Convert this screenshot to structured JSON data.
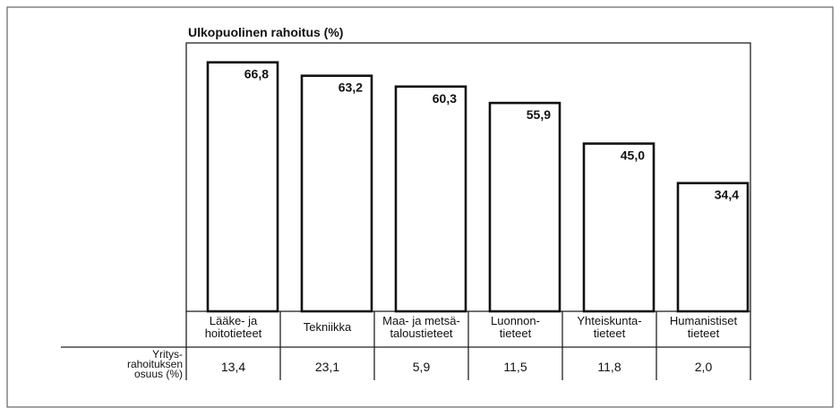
{
  "chart_data": {
    "type": "bar",
    "title": "Ulkopuolinen rahoitus (%)",
    "categories": [
      "Lääke- ja\nhoitotieteet",
      "Tekniikka",
      "Maa- ja metsä-\ntaloustieteet",
      "Luonnon-\ntieteet",
      "Yhteiskunta-\ntieteet",
      "Humanistiset\ntieteet"
    ],
    "values": [
      66.8,
      63.2,
      60.3,
      55.9,
      45.0,
      34.4
    ],
    "value_labels": [
      "66,8",
      "63,2",
      "60,3",
      "55,9",
      "45,0",
      "34,4"
    ],
    "color": "#ffffff",
    "ylim": [
      0,
      72
    ],
    "table": {
      "label": "Yritys-\nrahoituksen\nosuus (%)",
      "values": [
        13.4,
        23.1,
        5.9,
        11.5,
        11.8,
        2.0
      ],
      "value_labels": [
        "13,4",
        "23,1",
        "5,9",
        "11,5",
        "11,8",
        "2,0"
      ]
    }
  }
}
